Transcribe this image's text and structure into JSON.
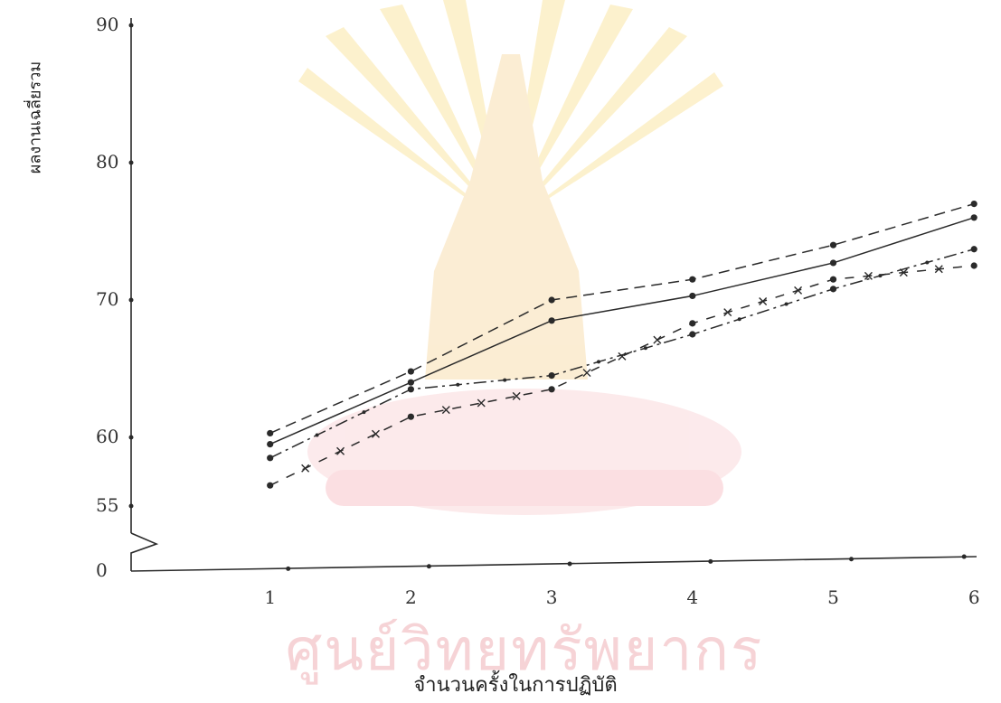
{
  "chart_data": {
    "type": "line",
    "xlabel": "จำนวนครั้งในการปฏิบัติ",
    "ylabel": "ผลงานเฉลี่ยรวม",
    "watermark": "ศูนย์วิทยทรัพยากร",
    "x_ticks": [
      1,
      2,
      3,
      4,
      5,
      6
    ],
    "y_ticks": [
      {
        "value": 0,
        "label": "0"
      },
      {
        "value": 55,
        "label": "55"
      },
      {
        "value": 60,
        "label": "60"
      },
      {
        "value": 70,
        "label": "70"
      },
      {
        "value": 80,
        "label": "80"
      },
      {
        "value": 90,
        "label": "90"
      }
    ],
    "axis_break": true,
    "grid": false,
    "xlim": [
      0,
      6
    ],
    "ylim": [
      50,
      90
    ],
    "series": [
      {
        "style": "dashed",
        "marker": "dot",
        "values": [
          60.3,
          64.8,
          70.0,
          71.5,
          74.0,
          77.0
        ]
      },
      {
        "style": "solid",
        "marker": "dot",
        "values": [
          59.5,
          64.0,
          68.5,
          70.3,
          72.7,
          76.0
        ]
      },
      {
        "style": "dash-dot",
        "marker": "dot",
        "values": [
          58.5,
          63.5,
          64.5,
          67.5,
          70.8,
          73.7
        ]
      },
      {
        "style": "dash-x",
        "marker": "x",
        "values": [
          56.5,
          61.5,
          63.5,
          68.3,
          71.5,
          72.5
        ]
      }
    ],
    "line_color": "#2a2a2a"
  }
}
